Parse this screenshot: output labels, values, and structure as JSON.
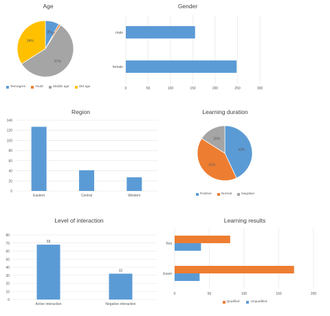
{
  "chart_data": [
    {
      "id": "age",
      "type": "pie",
      "title": "Age",
      "categories": [
        "Teenagers",
        "Youth",
        "Middle age",
        "Old age"
      ],
      "values": [
        8,
        1,
        57,
        34
      ],
      "data_labels": [
        "8%",
        "1%",
        "57%",
        "34%"
      ],
      "colors": [
        "#5B9BD5",
        "#ED7D31",
        "#A5A5A5",
        "#FFC000"
      ],
      "legend_position": "bottom"
    },
    {
      "id": "gender",
      "type": "bar",
      "orientation": "horizontal",
      "title": "Gender",
      "categories": [
        "male",
        "female"
      ],
      "values": [
        155,
        248
      ],
      "xlim": [
        0,
        300
      ],
      "xticks": [
        "0",
        "50",
        "100",
        "150",
        "200",
        "250",
        "300"
      ],
      "color": "#5B9BD5",
      "grid": true
    },
    {
      "id": "region",
      "type": "bar",
      "title": "Region",
      "categories": [
        "Eastern",
        "Central",
        "Western"
      ],
      "values": [
        127,
        41,
        27
      ],
      "ylim": [
        0,
        140
      ],
      "yticks": [
        "0",
        "20",
        "40",
        "60",
        "80",
        "100",
        "120",
        "140"
      ],
      "color": "#5B9BD5",
      "grid": true
    },
    {
      "id": "duration",
      "type": "pie",
      "title": "Learning duration",
      "categories": [
        "Positive",
        "Normal",
        "Negative"
      ],
      "values": [
        43,
        41,
        16
      ],
      "data_labels": [
        "43%",
        "41%",
        "16%"
      ],
      "colors": [
        "#5B9BD5",
        "#ED7D31",
        "#A5A5A5"
      ],
      "legend_position": "bottom"
    },
    {
      "id": "interaction",
      "type": "bar",
      "title": "Level of interaction",
      "categories": [
        "Active interaction",
        "Negative interaction"
      ],
      "values": [
        68,
        32
      ],
      "data_labels": [
        "68",
        "32"
      ],
      "ylim": [
        0,
        80
      ],
      "yticks": [
        "0",
        "10",
        "20",
        "30",
        "40",
        "50",
        "60",
        "70",
        "80"
      ],
      "color": "#5B9BD5",
      "grid": true
    },
    {
      "id": "results",
      "type": "bar",
      "orientation": "horizontal",
      "title": "Learning results",
      "categories": [
        "Test",
        "Exam"
      ],
      "series": [
        {
          "name": "Qualified",
          "values": [
            80,
            172
          ],
          "color": "#ED7D31"
        },
        {
          "name": "Unqualified",
          "values": [
            38,
            36
          ],
          "color": "#5B9BD5"
        }
      ],
      "xlim": [
        0,
        200
      ],
      "xticks": [
        "0",
        "50",
        "100",
        "150",
        "200"
      ],
      "grid": true,
      "legend_position": "bottom"
    }
  ]
}
